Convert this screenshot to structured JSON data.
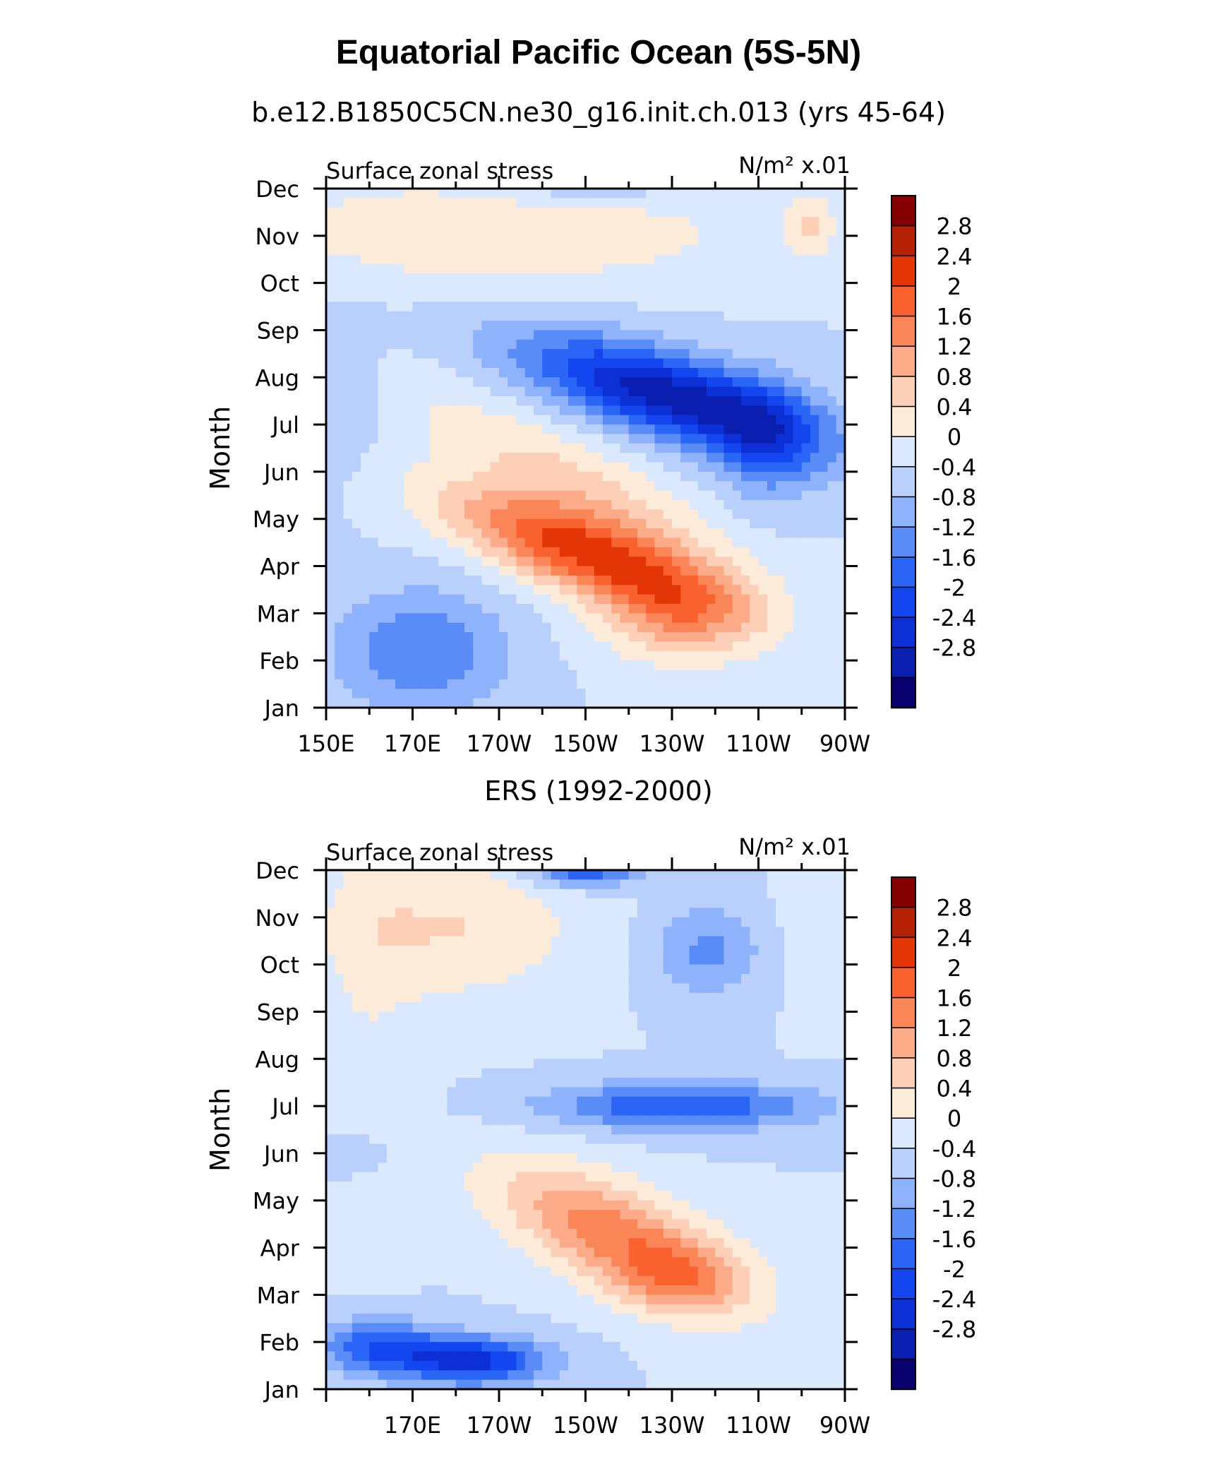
{
  "figure": {
    "title": "Equatorial Pacific Ocean (5S-5N)"
  },
  "colorbar": {
    "colors": [
      "#08006e",
      "#0a1fb0",
      "#0a30d6",
      "#1446f0",
      "#2a65f5",
      "#5a8cf8",
      "#8eb2fb",
      "#b9d0fd",
      "#dbe9fe",
      "#fdebd9",
      "#fdcfb6",
      "#fcab88",
      "#fa8658",
      "#f9612f",
      "#e33505",
      "#b32003",
      "#850000"
    ],
    "levels": [
      "2.8",
      "2.4",
      "2",
      "1.6",
      "1.2",
      "0.8",
      "0.4",
      "0",
      "-0.4",
      "-0.8",
      "-1.2",
      "-1.6",
      "-2",
      "-2.4",
      "-2.8"
    ]
  },
  "chart_data": [
    {
      "type": "heatmap",
      "title": "b.e12.B1850C5CN.ne30_g16.init.ch.013 (yrs 45-64)",
      "left_label": "Surface zonal stress",
      "right_label": "N/m² x.01",
      "ylabel": "Month",
      "x_ticks": [
        "150E",
        "170E",
        "170W",
        "150W",
        "130W",
        "110W",
        "90W"
      ],
      "y_ticks": [
        "Jan",
        "Feb",
        "Mar",
        "Apr",
        "May",
        "Jun",
        "Jul",
        "Aug",
        "Sep",
        "Oct",
        "Nov",
        "Dec"
      ],
      "xlim": [
        150,
        270
      ],
      "features": [
        {
          "lon": 210,
          "month": 3.3,
          "value": 2.6,
          "slon": 22,
          "smon": 0.65,
          "tilt": -0.03
        },
        {
          "lon": 232,
          "month": 1.9,
          "value": 1.2,
          "slon": 13,
          "smon": 0.7,
          "tilt": 0
        },
        {
          "lon": 205,
          "month": 5.0,
          "value": 0.8,
          "slon": 26,
          "smon": 0.7,
          "tilt": -0.04
        },
        {
          "lon": 230,
          "month": 6.6,
          "value": -2.7,
          "slon": 24,
          "smon": 0.65,
          "tilt": -0.025
        },
        {
          "lon": 252,
          "month": 5.6,
          "value": -1.0,
          "slon": 8,
          "smon": 0.9,
          "tilt": 0
        },
        {
          "lon": 172,
          "month": 1.2,
          "value": -1.2,
          "slon": 14,
          "smon": 0.9,
          "tilt": 0
        },
        {
          "lon": 190,
          "month": 10.1,
          "value": 0.8,
          "slon": 40,
          "smon": 0.8,
          "tilt": 0
        },
        {
          "lon": 210,
          "month": 11.1,
          "value": -0.6,
          "slon": 16,
          "smon": 0.35,
          "tilt": 0
        },
        {
          "lon": 262,
          "month": 10.2,
          "value": 0.7,
          "slon": 4,
          "smon": 0.5,
          "tilt": 0
        },
        {
          "lon": 154,
          "month": 6.7,
          "value": -0.4,
          "slon": 6,
          "smon": 1.2,
          "tilt": 0
        }
      ]
    },
    {
      "type": "heatmap",
      "title": "ERS (1992-2000)",
      "left_label": "Surface zonal stress",
      "right_label": "N/m² x.01",
      "ylabel": "Month",
      "x_ticks": [
        "170E",
        "170W",
        "150W",
        "130W",
        "110W",
        "90W"
      ],
      "y_ticks": [
        "Jan",
        "Feb",
        "Mar",
        "Apr",
        "May",
        "Jun",
        "Jul",
        "Aug",
        "Sep",
        "Oct",
        "Nov",
        "Dec"
      ],
      "xlim": [
        150,
        270
      ],
      "features": [
        {
          "lon": 218,
          "month": 3.2,
          "value": 1.9,
          "slon": 20,
          "smon": 0.8,
          "tilt": -0.035
        },
        {
          "lon": 232,
          "month": 2.3,
          "value": 0.9,
          "slon": 10,
          "smon": 0.5,
          "tilt": 0
        },
        {
          "lon": 184,
          "month": 0.6,
          "value": -2.2,
          "slon": 12,
          "smon": 0.35,
          "tilt": 0
        },
        {
          "lon": 162,
          "month": 0.9,
          "value": -1.5,
          "slon": 10,
          "smon": 0.4,
          "tilt": 0
        },
        {
          "lon": 232,
          "month": 6.0,
          "value": -1.6,
          "slon": 22,
          "smon": 0.35,
          "tilt": 0
        },
        {
          "lon": 210,
          "month": 11.0,
          "value": -1.6,
          "slon": 9,
          "smon": 0.25,
          "tilt": 0
        },
        {
          "lon": 238,
          "month": 9.3,
          "value": -0.9,
          "slon": 9,
          "smon": 0.7,
          "tilt": 0
        },
        {
          "lon": 180,
          "month": 9.8,
          "value": 0.8,
          "slon": 20,
          "smon": 1.1,
          "tilt": 0
        },
        {
          "lon": 160,
          "month": 8.5,
          "value": 0.3,
          "slon": 8,
          "smon": 3.0,
          "tilt": 0
        },
        {
          "lon": 262,
          "month": 10.0,
          "value": 0.3,
          "slon": 5,
          "smon": 1.2,
          "tilt": 0
        },
        {
          "lon": 155,
          "month": 5.0,
          "value": -0.5,
          "slon": 6,
          "smon": 0.3,
          "tilt": 0
        }
      ]
    }
  ]
}
